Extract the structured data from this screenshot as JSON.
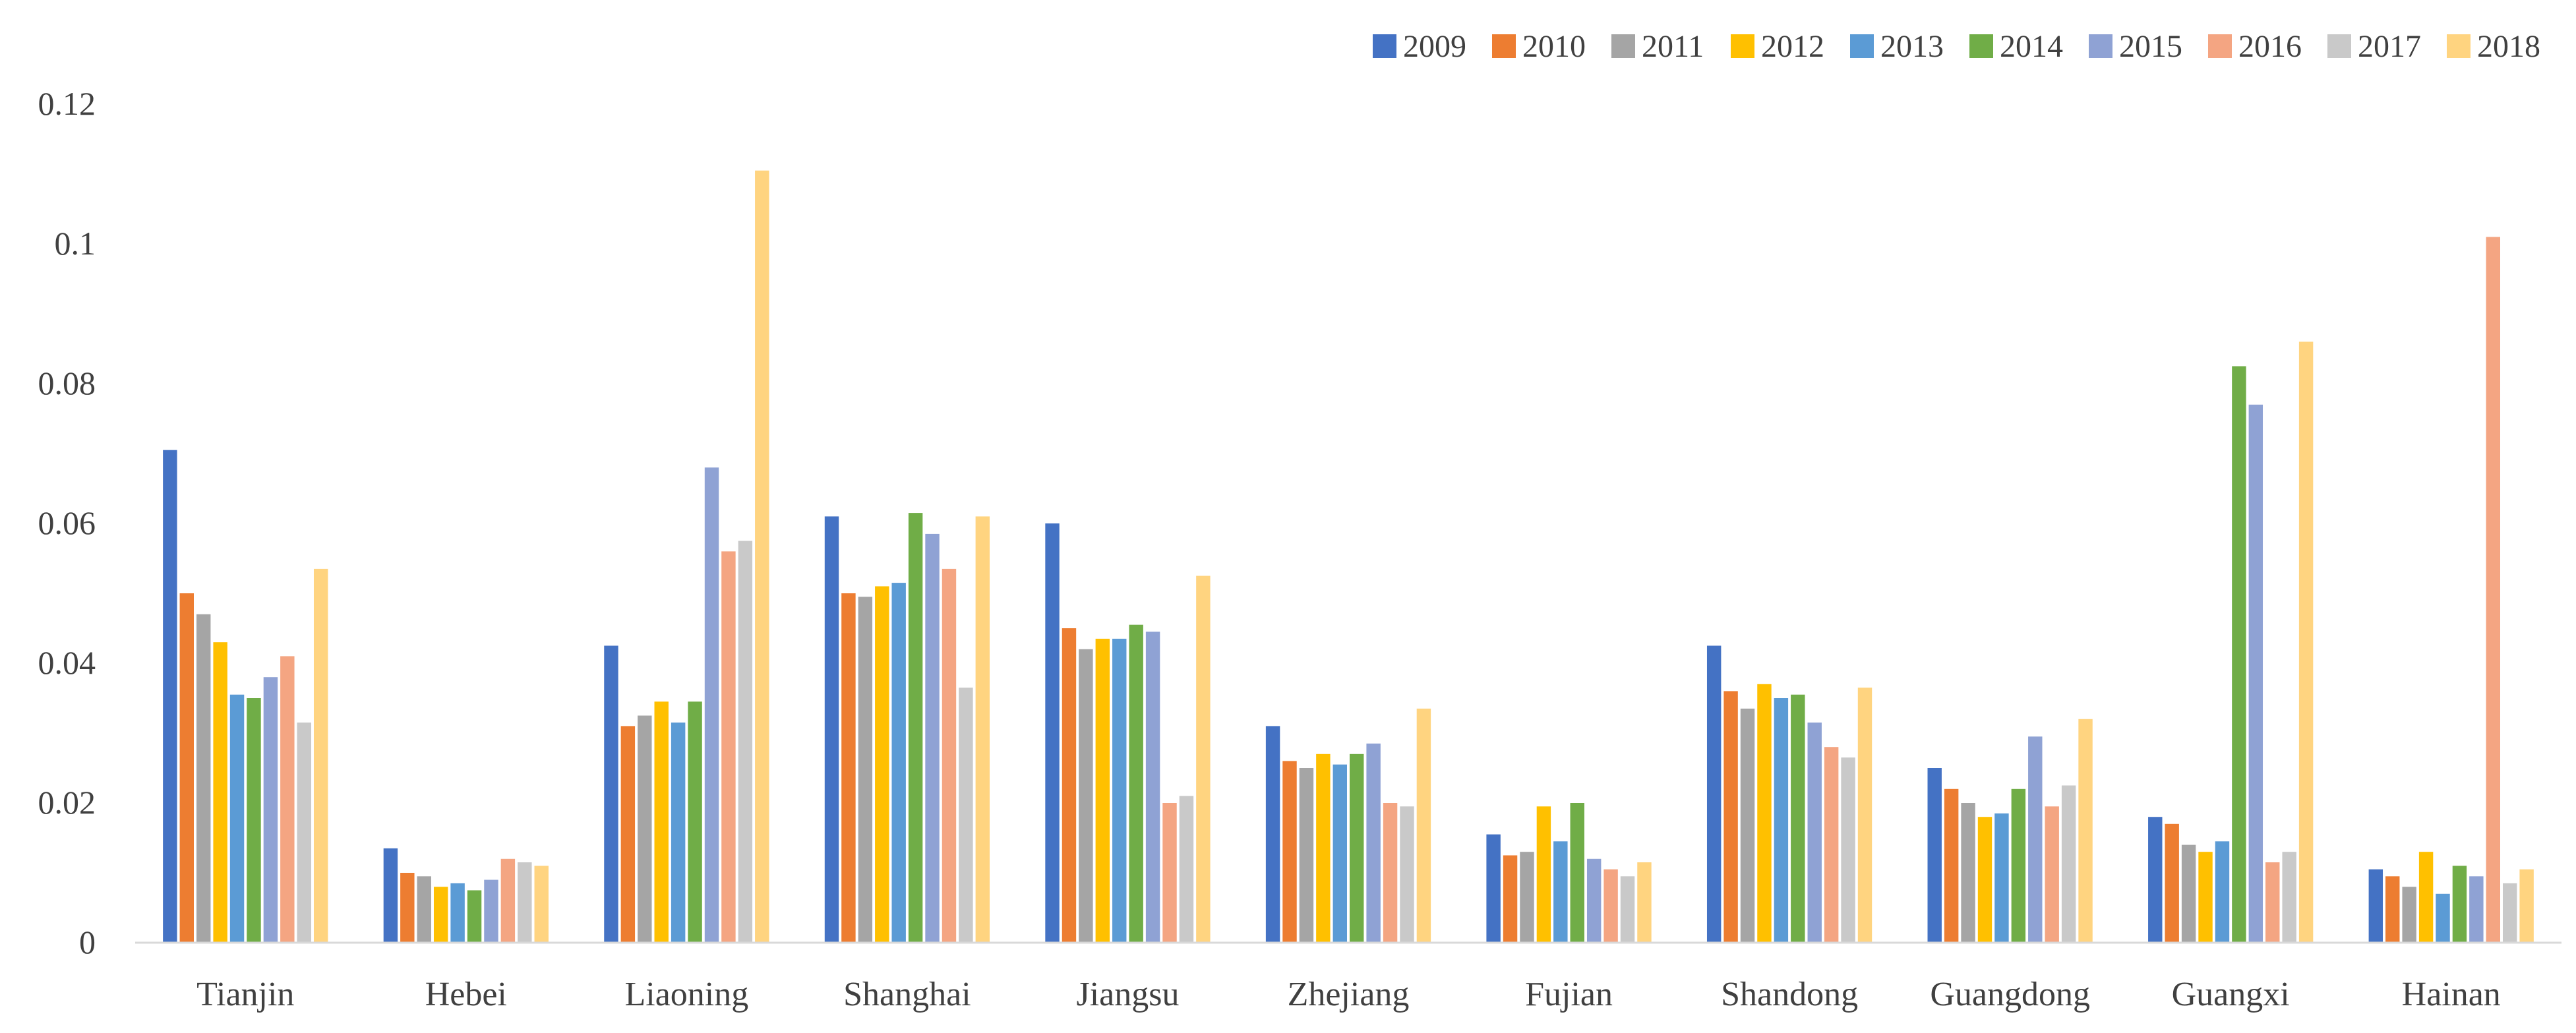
{
  "chart_data": {
    "type": "bar",
    "title": "",
    "xlabel": "",
    "ylabel": "",
    "ylim": [
      0,
      0.12
    ],
    "yticks": [
      0,
      0.02,
      0.04,
      0.06,
      0.08,
      0.1,
      0.12
    ],
    "ytick_labels": [
      "0",
      "0.02",
      "0.04",
      "0.06",
      "0.08",
      "0.1",
      "0.12"
    ],
    "grid": false,
    "legend_position": "top-right",
    "categories": [
      "Tianjin",
      "Hebei",
      "Liaoning",
      "Shanghai",
      "Jiangsu",
      "Zhejiang",
      "Fujian",
      "Shandong",
      "Guangdong",
      "Guangxi",
      "Hainan"
    ],
    "series": [
      {
        "name": "2009",
        "color": "#4472C4",
        "values": [
          0.0705,
          0.0135,
          0.0425,
          0.061,
          0.06,
          0.031,
          0.0155,
          0.0425,
          0.025,
          0.018,
          0.0105
        ]
      },
      {
        "name": "2010",
        "color": "#ED7D31",
        "values": [
          0.05,
          0.01,
          0.031,
          0.05,
          0.045,
          0.026,
          0.0125,
          0.036,
          0.022,
          0.017,
          0.0095
        ]
      },
      {
        "name": "2011",
        "color": "#A5A5A5",
        "values": [
          0.047,
          0.0095,
          0.0325,
          0.0495,
          0.042,
          0.025,
          0.013,
          0.0335,
          0.02,
          0.014,
          0.008
        ]
      },
      {
        "name": "2012",
        "color": "#FFC000",
        "values": [
          0.043,
          0.008,
          0.0345,
          0.051,
          0.0435,
          0.027,
          0.0195,
          0.037,
          0.018,
          0.013,
          0.013
        ]
      },
      {
        "name": "2013",
        "color": "#5B9BD5",
        "values": [
          0.0355,
          0.0085,
          0.0315,
          0.0515,
          0.0435,
          0.0255,
          0.0145,
          0.035,
          0.0185,
          0.0145,
          0.007
        ]
      },
      {
        "name": "2014",
        "color": "#70AD47",
        "values": [
          0.035,
          0.0075,
          0.0345,
          0.0615,
          0.0455,
          0.027,
          0.02,
          0.0355,
          0.022,
          0.0825,
          0.011
        ]
      },
      {
        "name": "2015",
        "color": "#8FA2D4",
        "values": [
          0.038,
          0.009,
          0.068,
          0.0585,
          0.0445,
          0.0285,
          0.012,
          0.0315,
          0.0295,
          0.077,
          0.0095
        ]
      },
      {
        "name": "2016",
        "color": "#F4A582",
        "values": [
          0.041,
          0.012,
          0.056,
          0.0535,
          0.02,
          0.02,
          0.0105,
          0.028,
          0.0195,
          0.0115,
          0.101
        ]
      },
      {
        "name": "2017",
        "color": "#C9C9C9",
        "values": [
          0.0315,
          0.0115,
          0.0575,
          0.0365,
          0.021,
          0.0195,
          0.0095,
          0.0265,
          0.0225,
          0.013,
          0.0085
        ]
      },
      {
        "name": "2018",
        "color": "#FFD480",
        "values": [
          0.0535,
          0.011,
          0.1105,
          0.061,
          0.0525,
          0.0335,
          0.0115,
          0.0365,
          0.032,
          0.086,
          0.0105
        ]
      }
    ]
  }
}
